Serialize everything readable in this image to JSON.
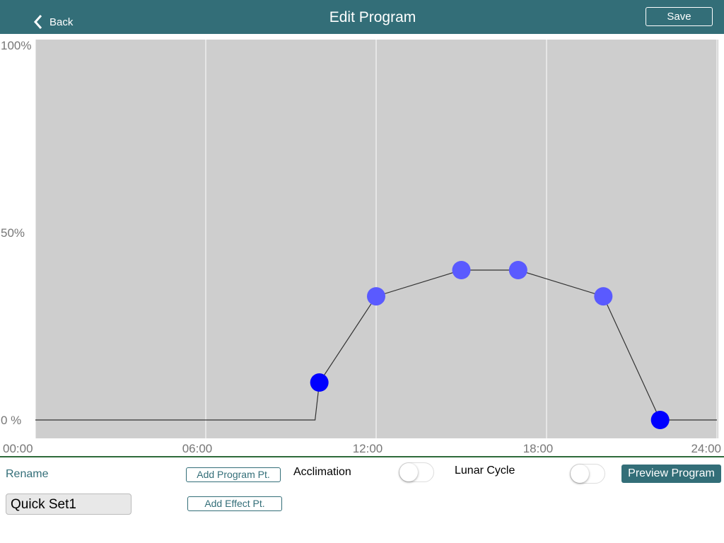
{
  "header": {
    "back": "Back",
    "title": "Edit Program",
    "save": "Save"
  },
  "chart_data": {
    "type": "line",
    "xlim": [
      0,
      24
    ],
    "xticks": [
      {
        "value": 0,
        "label": "00:00"
      },
      {
        "value": 6,
        "label": "06:00"
      },
      {
        "value": 12,
        "label": "12:00"
      },
      {
        "value": 18,
        "label": "18:00"
      },
      {
        "value": 24,
        "label": "24:00"
      }
    ],
    "ylim": [
      0,
      100
    ],
    "yticks": [
      {
        "value": 100,
        "label": "100%"
      },
      {
        "value": 50,
        "label": "50%"
      },
      {
        "value": 0,
        "label": "0 %"
      }
    ],
    "grid": true,
    "line_color": "#333333",
    "line": {
      "x": [
        0,
        9.85,
        10,
        12,
        15,
        17,
        20,
        22,
        24
      ],
      "values": [
        0,
        0,
        10,
        33,
        40,
        40,
        33,
        0,
        0
      ]
    },
    "points": {
      "x": [
        10,
        12,
        15,
        17,
        20,
        22
      ],
      "values": [
        10,
        33,
        40,
        40,
        33,
        0
      ],
      "colors": [
        "#0000ff",
        "#5a5aff",
        "#5a5aff",
        "#5a5aff",
        "#5a5aff",
        "#0000ff"
      ]
    }
  },
  "controls": {
    "rename": "Rename",
    "name_field": "Quick Set1",
    "add_program_pt": "Add Program Pt.",
    "add_effect_pt": "Add Effect Pt.",
    "acclimation": {
      "label": "Acclimation",
      "on": false
    },
    "lunar_cycle": {
      "label": "Lunar Cycle",
      "on": false
    },
    "preview": "Preview Program"
  }
}
